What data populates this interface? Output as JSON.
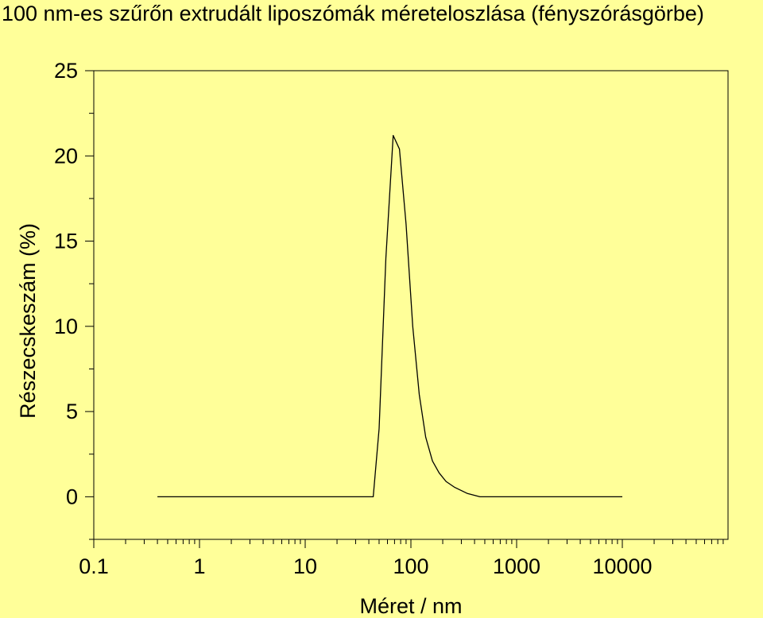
{
  "chart_data": {
    "type": "line",
    "title": "100 nm-es szűrőn extrudált liposzómák méreteloszlása (fényszórásgörbe)",
    "xlabel": "Méret / nm",
    "ylabel": "Részecskeszám (%)",
    "x_scale": "log",
    "xlim": [
      0.1,
      100000
    ],
    "ylim": [
      -2.5,
      25
    ],
    "x_ticks": [
      "0.1",
      "1",
      "10",
      "100",
      "1000",
      "10000"
    ],
    "y_ticks": [
      "0",
      "5",
      "10",
      "15",
      "20",
      "25"
    ],
    "grid": false,
    "series": [
      {
        "values": [
          {
            "x": 0.4,
            "y": 0
          },
          {
            "x": 44,
            "y": 0
          },
          {
            "x": 50,
            "y": 4
          },
          {
            "x": 58,
            "y": 14
          },
          {
            "x": 68,
            "y": 21.2
          },
          {
            "x": 78,
            "y": 20.4
          },
          {
            "x": 90,
            "y": 16
          },
          {
            "x": 104,
            "y": 10
          },
          {
            "x": 120,
            "y": 6
          },
          {
            "x": 138,
            "y": 3.5
          },
          {
            "x": 160,
            "y": 2.1
          },
          {
            "x": 185,
            "y": 1.4
          },
          {
            "x": 215,
            "y": 0.9
          },
          {
            "x": 260,
            "y": 0.55
          },
          {
            "x": 340,
            "y": 0.2
          },
          {
            "x": 450,
            "y": 0
          },
          {
            "x": 10000,
            "y": 0
          }
        ]
      }
    ]
  }
}
